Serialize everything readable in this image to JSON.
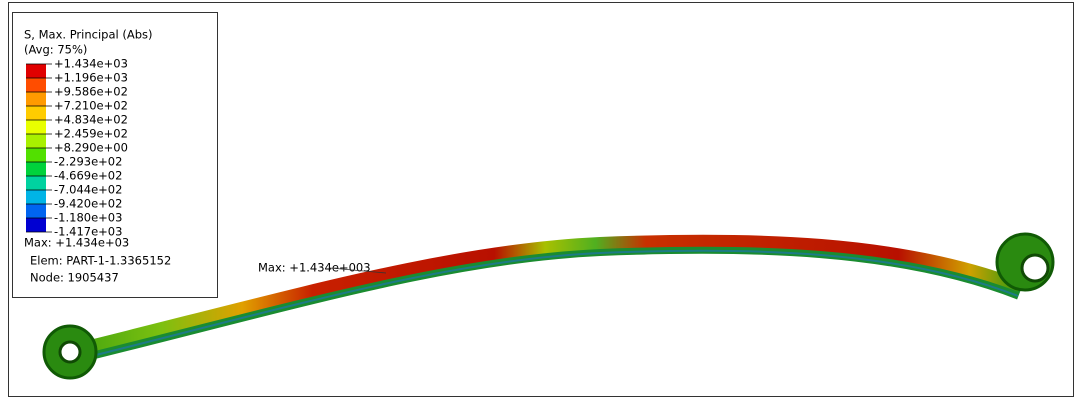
{
  "legend": {
    "title": "S, Max. Principal (Abs)",
    "subtitle": "(Avg: 75%)",
    "labels": [
      "+1.434e+03",
      "+1.196e+03",
      "+9.586e+02",
      "+7.210e+02",
      "+4.834e+02",
      "+2.459e+02",
      "+8.290e+00",
      "-2.293e+02",
      "-4.669e+02",
      "-7.044e+02",
      "-9.420e+02",
      "-1.180e+03",
      "-1.417e+03"
    ],
    "colors": [
      "#e00000",
      "#ff4d00",
      "#ff9a00",
      "#ffcc00",
      "#e8ff00",
      "#a8f000",
      "#52e000",
      "#00d23c",
      "#00d2a0",
      "#00b4e6",
      "#0064f0",
      "#0000d2"
    ]
  },
  "max_info": {
    "max": "Max: +1.434e+03",
    "elem": "Elem: PART-1-1.3365152",
    "node": "Node: 1905437"
  },
  "annotation": "Max: +1.434e+003"
}
